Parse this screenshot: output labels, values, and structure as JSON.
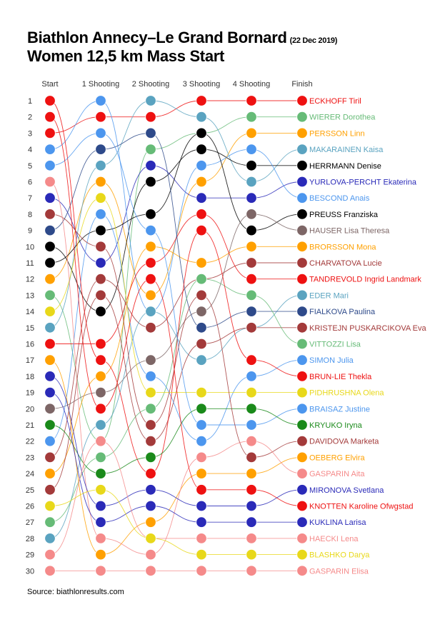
{
  "title_line1": "Biathlon Annecy–Le Grand Bornard",
  "title_date": "(22 Dec 2019)",
  "title_line2": "Women 12,5 km Mass Start",
  "source": "Source: biathlonresults.com",
  "chart_data": {
    "type": "line",
    "title": "Biathlon Annecy–Le Grand Bornard (22 Dec 2019) Women 12,5 km Mass Start",
    "columns": [
      "Start",
      "1 Shooting",
      "2 Shooting",
      "3 Shooting",
      "4 Shooting",
      "Finish"
    ],
    "positions": [
      1,
      2,
      3,
      4,
      5,
      6,
      7,
      8,
      9,
      10,
      11,
      12,
      13,
      14,
      15,
      16,
      17,
      18,
      19,
      20,
      21,
      22,
      23,
      24,
      25,
      26,
      27,
      28,
      29,
      30
    ],
    "series": [
      {
        "name": "ECKHOFF Tiril",
        "color": "#ee1111",
        "ranks": [
          3,
          2,
          2,
          1,
          1,
          1
        ]
      },
      {
        "name": "WIERER Dorothea",
        "color": "#66bb77",
        "ranks": [
          13,
          22,
          4,
          3,
          2,
          2
        ]
      },
      {
        "name": "PERSSON Linn",
        "color": "#ffa000",
        "ranks": [
          12,
          6,
          13,
          6,
          3,
          3
        ]
      },
      {
        "name": "MAKARAINEN Kaisa",
        "color": "#5aa3c0",
        "ranks": [
          15,
          5,
          1,
          2,
          6,
          4
        ]
      },
      {
        "name": "HERRMANN Denise",
        "color": "#000000",
        "ranks": [
          10,
          14,
          6,
          4,
          5,
          5
        ]
      },
      {
        "name": "YURLOVA-PERCHT Ekaterina",
        "color": "#2a2ab8",
        "ranks": [
          7,
          11,
          5,
          7,
          7,
          6
        ]
      },
      {
        "name": "BESCOND Anais",
        "color": "#4c96ee",
        "ranks": [
          4,
          1,
          14,
          5,
          4,
          7
        ]
      },
      {
        "name": "PREUSS Franziska",
        "color": "#000000",
        "ranks": [
          11,
          9,
          8,
          3,
          9,
          8
        ]
      },
      {
        "name": "HAUSER Lisa Theresa",
        "color": "#7d6666",
        "ranks": [
          20,
          19,
          17,
          14,
          8,
          9
        ]
      },
      {
        "name": "BRORSSON Mona",
        "color": "#ffa000",
        "ranks": [
          24,
          18,
          10,
          11,
          10,
          10
        ]
      },
      {
        "name": "CHARVATOVA Lucie",
        "color": "#a33a3a",
        "ranks": [
          23,
          12,
          15,
          12,
          11,
          11
        ]
      },
      {
        "name": "TANDREVOLD Ingrid Landmark",
        "color": "#ee1111",
        "ranks": [
          16,
          16,
          11,
          8,
          12,
          12
        ]
      },
      {
        "name": "EDER Mari",
        "color": "#5aa3c0",
        "ranks": [
          28,
          21,
          14,
          17,
          15,
          13
        ]
      },
      {
        "name": "FIALKOVA Paulina",
        "color": "#2e4a8a",
        "ranks": [
          9,
          4,
          3,
          15,
          14,
          14
        ]
      },
      {
        "name": "KRISTEJN PUSKARCIKOVA Eva",
        "color": "#a33a3a",
        "ranks": [
          25,
          13,
          22,
          16,
          15,
          15
        ]
      },
      {
        "name": "VITTOZZI Lisa",
        "color": "#66bb77",
        "ranks": [
          27,
          23,
          20,
          12,
          13,
          16
        ]
      },
      {
        "name": "SIMON Julia",
        "color": "#4c96ee",
        "ranks": [
          22,
          8,
          18,
          22,
          18,
          17
        ]
      },
      {
        "name": "BRUN-LIE Thekla",
        "color": "#ee1111",
        "ranks": [
          1,
          17,
          24,
          9,
          17,
          18
        ]
      },
      {
        "name": "PIDHRUSHNA Olena",
        "color": "#e8d81a",
        "ranks": [
          14,
          7,
          19,
          19,
          19,
          19
        ]
      },
      {
        "name": "BRAISAZ Justine",
        "color": "#4c96ee",
        "ranks": [
          5,
          3,
          9,
          21,
          21,
          20
        ]
      },
      {
        "name": "KRYUKO Iryna",
        "color": "#1a8a1a",
        "ranks": [
          21,
          24,
          23,
          20,
          20,
          21
        ]
      },
      {
        "name": "DAVIDOVA Marketa",
        "color": "#a33a3a",
        "ranks": [
          8,
          10,
          21,
          13,
          23,
          22
        ]
      },
      {
        "name": "OEBERG Elvira",
        "color": "#ffa000",
        "ranks": [
          17,
          29,
          27,
          24,
          24,
          23
        ]
      },
      {
        "name": "GASPARIN Aita",
        "color": "#f58a8a",
        "ranks": [
          6,
          28,
          29,
          23,
          22,
          24
        ]
      },
      {
        "name": "MIRONOVA Svetlana",
        "color": "#2a2ab8",
        "ranks": [
          18,
          26,
          25,
          26,
          26,
          25
        ]
      },
      {
        "name": "KNOTTEN Karoline Ofwgstad",
        "color": "#ee1111",
        "ranks": [
          2,
          20,
          12,
          25,
          25,
          26
        ]
      },
      {
        "name": "KUKLINA Larisa",
        "color": "#2a2ab8",
        "ranks": [
          19,
          27,
          26,
          27,
          27,
          27
        ]
      },
      {
        "name": "HAECKI Lena",
        "color": "#f58a8a",
        "ranks": [
          29,
          22,
          28,
          28,
          28,
          28
        ]
      },
      {
        "name": "BLASHKO Darya",
        "color": "#e8d81a",
        "ranks": [
          26,
          25,
          28,
          29,
          29,
          29
        ]
      },
      {
        "name": "GASPARIN Elisa",
        "color": "#f58a8a",
        "ranks": [
          30,
          30,
          30,
          30,
          30,
          30
        ]
      }
    ]
  }
}
